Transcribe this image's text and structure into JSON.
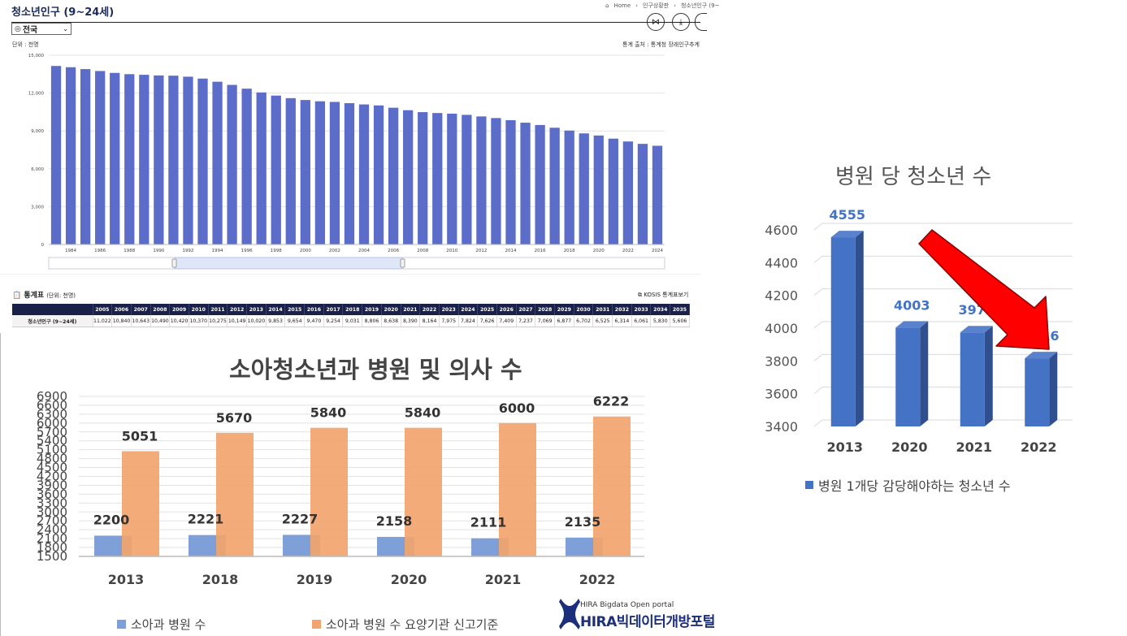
{
  "top_panel": {
    "title": "청소년인구 (9~24세)",
    "breadcrumb": [
      "Home",
      "인구상황판",
      "청소년인구 (9~"
    ],
    "region_select": "전국",
    "unit_label": "단위 : 천명",
    "source_label": "통계 출처 : 통계청 장래인구추계",
    "table_section_title": "통계표",
    "table_unit": "(단위: 천명)",
    "kosis_link": "KOSIS 통계표보기",
    "icons": [
      "share-icon",
      "download-icon",
      "more-icon",
      "home-icon",
      "location-pin-icon",
      "table-icon",
      "window-icon"
    ]
  },
  "stat_table": {
    "row_label": "청소년인구 (9~24세)",
    "years": [
      "2005",
      "2006",
      "2007",
      "2008",
      "2009",
      "2010",
      "2011",
      "2012",
      "2013",
      "2014",
      "2015",
      "2016",
      "2017",
      "2018",
      "2019",
      "2020",
      "2021",
      "2022",
      "2023",
      "2024",
      "2025",
      "2026",
      "2027",
      "2028",
      "2029",
      "2030",
      "2031",
      "2032",
      "2033",
      "2034",
      "2035"
    ],
    "values": [
      "11,022",
      "10,840",
      "10,643",
      "10,490",
      "10,420",
      "10,370",
      "10,275",
      "10,149",
      "10,020",
      "9,853",
      "9,654",
      "9,470",
      "9,254",
      "9,031",
      "8,806",
      "8,638",
      "8,390",
      "8,164",
      "7,975",
      "7,824",
      "7,626",
      "7,409",
      "7,237",
      "7,069",
      "6,877",
      "6,702",
      "6,525",
      "6,314",
      "6,061",
      "5,830",
      "5,606"
    ]
  },
  "chart_data": [
    {
      "type": "bar",
      "title": "",
      "x": [
        1983,
        1984,
        1985,
        1986,
        1987,
        1988,
        1989,
        1990,
        1991,
        1992,
        1993,
        1994,
        1995,
        1996,
        1997,
        1998,
        1999,
        2000,
        2001,
        2002,
        2003,
        2004,
        2005,
        2006,
        2007,
        2008,
        2009,
        2010,
        2011,
        2012,
        2013,
        2014,
        2015,
        2016,
        2017,
        2018,
        2019,
        2020,
        2021,
        2022,
        2023,
        2024
      ],
      "tick_labels": [
        "1984",
        "1986",
        "1988",
        "1990",
        "1992",
        "1994",
        "1996",
        "1998",
        "2000",
        "2002",
        "2004",
        "2006",
        "2008",
        "2010",
        "2012",
        "2014",
        "2016",
        "2018",
        "2020",
        "2022",
        "2024"
      ],
      "values": [
        14150,
        14050,
        13900,
        13750,
        13600,
        13500,
        13450,
        13400,
        13380,
        13300,
        13150,
        12900,
        12650,
        12350,
        12050,
        11800,
        11600,
        11450,
        11350,
        11300,
        11200,
        11100,
        11022,
        10840,
        10643,
        10490,
        10420,
        10370,
        10275,
        10149,
        10020,
        9853,
        9654,
        9470,
        9254,
        9031,
        8806,
        8638,
        8390,
        8164,
        7975,
        7824
      ],
      "ylim": [
        0,
        15000
      ],
      "yticks": [
        0,
        3000,
        6000,
        9000,
        12000,
        15000
      ],
      "ytick_labels": [
        "0",
        "3,000",
        "6,000",
        "9,000",
        "12,000",
        "15,000"
      ],
      "color": "#5b6dc9",
      "grid": true
    },
    {
      "type": "bar",
      "title": "소아청소년과 병원 및 의사 수",
      "categories": [
        "2013",
        "2018",
        "2019",
        "2020",
        "2021",
        "2022"
      ],
      "series": [
        {
          "name": "소아과 병원 수",
          "values": [
            2200,
            2221,
            2227,
            2158,
            2111,
            2135
          ],
          "color": "#7f9fd8"
        },
        {
          "name": "소아과 병원 수 요양기관 신고기준",
          "values": [
            5051,
            5670,
            5840,
            5840,
            6000,
            6222
          ],
          "color": "#f2a46e"
        }
      ],
      "ylim": [
        1500,
        6900
      ],
      "yticks": [
        1500,
        1800,
        2100,
        2400,
        2700,
        3000,
        3300,
        3600,
        3900,
        4200,
        4500,
        4800,
        5100,
        5400,
        5700,
        6000,
        6300,
        6600,
        6900
      ],
      "legend": "bottom"
    },
    {
      "type": "bar",
      "title": "병원 당 청소년 수",
      "categories": [
        "2013",
        "2020",
        "2021",
        "2022"
      ],
      "series": [
        {
          "name": "병원 1개당 감당해야하는 청소년 수",
          "values": [
            4555,
            4003,
            3974,
            3816
          ],
          "color": "#4472c4"
        }
      ],
      "ylim": [
        3400,
        4600
      ],
      "yticks": [
        3400,
        3600,
        3800,
        4000,
        4200,
        4400,
        4600
      ],
      "legend": "bottom",
      "annotation": "red-down-arrow",
      "arrow_color": "#ff0000"
    }
  ],
  "logo": {
    "small": "HIRA Bigdata Open portal",
    "big": "HIRA빅데이터개방포털"
  }
}
